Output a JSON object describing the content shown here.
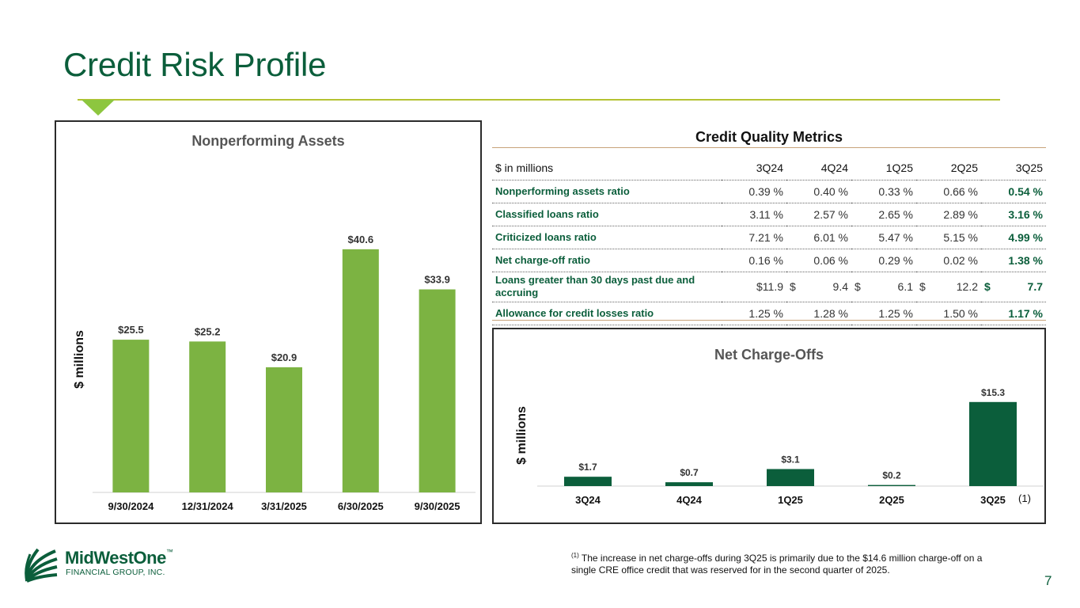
{
  "page": {
    "title": "Credit Risk Profile",
    "page_number": "7",
    "footnote_marker": "(1)",
    "footnote_text": "The increase in net charge-offs during 3Q25 is primarily due to the $14.6 million charge-off on a single CRE office credit that was reserved for in the second quarter of 2025."
  },
  "logo": {
    "name": "MidWestOne",
    "trademark": "™",
    "subtitle": "FINANCIAL GROUP, INC."
  },
  "colors": {
    "brand_green": "#0b5e3b",
    "light_green": "#7cb342",
    "accent_rule": "#b4c232",
    "marker": "#8dc63f"
  },
  "metrics": {
    "title": "Credit Quality Metrics",
    "unit_label": "$ in millions",
    "columns": [
      "3Q24",
      "4Q24",
      "1Q25",
      "2Q25",
      "3Q25"
    ],
    "rows": [
      {
        "label": "Nonperforming assets ratio",
        "cells": [
          {
            "p": "",
            "v": "0.39 %"
          },
          {
            "p": "",
            "v": "0.40 %"
          },
          {
            "p": "",
            "v": "0.33 %"
          },
          {
            "p": "",
            "v": "0.66 %"
          },
          {
            "p": "",
            "v": "0.54 %"
          }
        ]
      },
      {
        "label": "Classified loans ratio",
        "cells": [
          {
            "p": "",
            "v": "3.11 %"
          },
          {
            "p": "",
            "v": "2.57 %"
          },
          {
            "p": "",
            "v": "2.65 %"
          },
          {
            "p": "",
            "v": "2.89 %"
          },
          {
            "p": "",
            "v": "3.16 %"
          }
        ]
      },
      {
        "label": "Criticized loans ratio",
        "cells": [
          {
            "p": "",
            "v": "7.21 %"
          },
          {
            "p": "",
            "v": "6.01 %"
          },
          {
            "p": "",
            "v": "5.47 %"
          },
          {
            "p": "",
            "v": "5.15 %"
          },
          {
            "p": "",
            "v": "4.99 %"
          }
        ]
      },
      {
        "label": "Net charge-off ratio",
        "cells": [
          {
            "p": "",
            "v": "0.16 %"
          },
          {
            "p": "",
            "v": "0.06 %"
          },
          {
            "p": "",
            "v": "0.29 %"
          },
          {
            "p": "",
            "v": "0.02 %"
          },
          {
            "p": "",
            "v": "1.38 %"
          }
        ]
      },
      {
        "label": "Loans greater than 30 days past due and accruing",
        "cells": [
          {
            "p": "",
            "v": "$11.9"
          },
          {
            "p": "$",
            "v": "9.4"
          },
          {
            "p": "$",
            "v": "6.1"
          },
          {
            "p": "$",
            "v": "12.2"
          },
          {
            "p": "$",
            "v": "7.7"
          }
        ]
      },
      {
        "label": "Allowance for credit losses ratio",
        "cells": [
          {
            "p": "",
            "v": "1.25 %"
          },
          {
            "p": "",
            "v": "1.28 %"
          },
          {
            "p": "",
            "v": "1.25 %"
          },
          {
            "p": "",
            "v": "1.50 %"
          },
          {
            "p": "",
            "v": "1.17 %"
          }
        ]
      }
    ]
  },
  "chart_data": [
    {
      "id": "npa",
      "type": "bar",
      "title": "Nonperforming Assets",
      "ylabel": "$ millions",
      "categories": [
        "9/30/2024",
        "12/31/2024",
        "3/31/2025",
        "6/30/2025",
        "9/30/2025"
      ],
      "values": [
        25.5,
        25.2,
        20.9,
        40.6,
        33.9
      ],
      "data_labels": [
        "$25.5",
        "$25.2",
        "$20.9",
        "$40.6",
        "$33.9"
      ],
      "ylim": [
        0,
        46
      ],
      "color": "#7cb342",
      "grid": false
    },
    {
      "id": "nco",
      "type": "bar",
      "title": "Net Charge-Offs",
      "ylabel": "$ millions",
      "categories": [
        "3Q24",
        "4Q24",
        "1Q25",
        "2Q25",
        "3Q25"
      ],
      "values": [
        1.7,
        0.7,
        3.1,
        0.2,
        15.3
      ],
      "data_labels": [
        "$1.7",
        "$0.7",
        "$3.1",
        "$0.2",
        "$15.3"
      ],
      "annotations": [
        "",
        "",
        "",
        "",
        "(1)"
      ],
      "ylim": [
        0,
        17
      ],
      "color": "#0b5e3b",
      "grid": false
    }
  ]
}
